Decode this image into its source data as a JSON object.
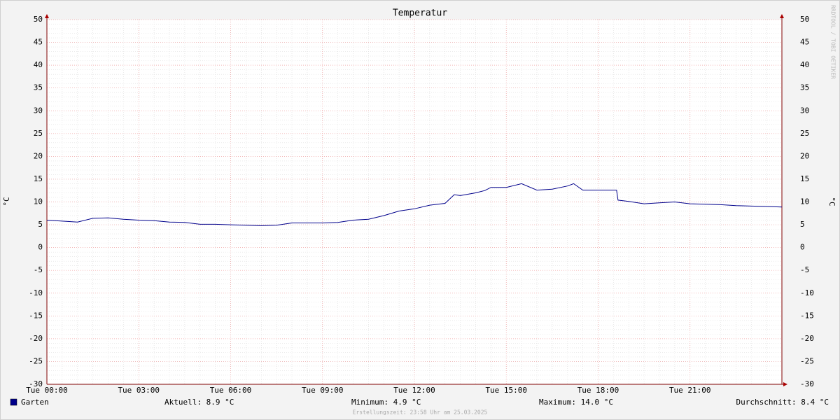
{
  "chart_data": {
    "type": "line",
    "title": "Temperatur",
    "y_label": "°C",
    "side_text": "RRDTOOL / TOBI OETIKER",
    "footer": "Erstellungszeit: 23:58 Uhr am 25.03.2025",
    "x": [
      0,
      0.5,
      1,
      1.5,
      2,
      2.5,
      3,
      3.5,
      4,
      4.5,
      5,
      5.5,
      6,
      6.5,
      7,
      7.5,
      8,
      8.5,
      9,
      9.5,
      10,
      10.5,
      11,
      11.5,
      12,
      12.5,
      13,
      13.3,
      13.5,
      14,
      14.3,
      14.5,
      15,
      15.5,
      16,
      16.5,
      17,
      17.2,
      17.5,
      18,
      18.6,
      18.65,
      19,
      19.5,
      20,
      20.5,
      21,
      21.5,
      22,
      22.5,
      23,
      23.5,
      24
    ],
    "series": [
      {
        "name": "Garten",
        "color": "#00008b",
        "values": [
          6.0,
          5.8,
          5.6,
          6.4,
          6.5,
          6.2,
          6.0,
          5.9,
          5.6,
          5.5,
          5.1,
          5.1,
          5.0,
          4.9,
          4.8,
          4.9,
          5.4,
          5.4,
          5.4,
          5.5,
          6.0,
          6.2,
          7.0,
          8.0,
          8.5,
          9.3,
          9.7,
          11.6,
          11.4,
          12.0,
          12.5,
          13.2,
          13.2,
          14.0,
          12.6,
          12.8,
          13.5,
          14.0,
          12.6,
          12.6,
          12.6,
          10.4,
          10.1,
          9.6,
          9.8,
          10.0,
          9.6,
          9.5,
          9.4,
          9.2,
          9.1,
          9.0,
          8.9
        ]
      }
    ],
    "stats": [
      "Aktuell: 8.9 °C",
      "Minimum: 4.9 °C",
      "Maximum: 14.0 °C",
      "Durchschnitt: 8.4 °C"
    ],
    "xlim": [
      0,
      24
    ],
    "xticks": [
      {
        "value": 0,
        "label": "Tue 00:00"
      },
      {
        "value": 3,
        "label": "Tue 03:00"
      },
      {
        "value": 6,
        "label": "Tue 06:00"
      },
      {
        "value": 9,
        "label": "Tue 09:00"
      },
      {
        "value": 12,
        "label": "Tue 12:00"
      },
      {
        "value": 15,
        "label": "Tue 15:00"
      },
      {
        "value": 18,
        "label": "Tue 18:00"
      },
      {
        "value": 21,
        "label": "Tue 21:00"
      }
    ],
    "ylim": [
      -30,
      50
    ],
    "yticks": [
      -30,
      -25,
      -20,
      -15,
      -10,
      -5,
      0,
      5,
      10,
      15,
      20,
      25,
      30,
      35,
      40,
      45,
      50
    ],
    "grid": true
  }
}
